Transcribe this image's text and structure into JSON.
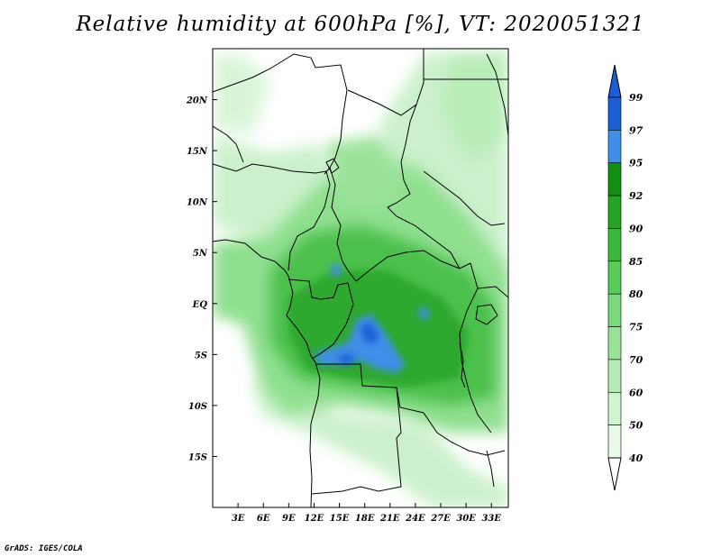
{
  "title": "Relative humidity at 600hPa [%], VT: 2020051321",
  "credit": "GrADS: IGES/COLA",
  "map": {
    "variable": "Relative humidity",
    "level": "600hPa",
    "units": "%",
    "valid_time": "2020051321",
    "lon_range": [
      0,
      35
    ],
    "lat_range": [
      -20,
      25
    ],
    "x_ticks": [
      "3E",
      "6E",
      "9E",
      "12E",
      "15E",
      "18E",
      "21E",
      "24E",
      "27E",
      "30E",
      "33E"
    ],
    "x_tick_values": [
      3,
      6,
      9,
      12,
      15,
      18,
      21,
      24,
      27,
      30,
      33
    ],
    "y_ticks": [
      "20N",
      "15N",
      "10N",
      "5N",
      "EQ",
      "5S",
      "10S",
      "15S"
    ],
    "y_tick_values": [
      20,
      15,
      10,
      5,
      0,
      -5,
      -10,
      -15
    ]
  },
  "colorbar": {
    "levels": [
      "99",
      "97",
      "95",
      "92",
      "90",
      "85",
      "80",
      "75",
      "70",
      "60",
      "50",
      "40"
    ],
    "colors": [
      "#1a5fd6",
      "#3f8fe8",
      "#0f9010",
      "#24a524",
      "#3bb83b",
      "#58cc58",
      "#7ad97a",
      "#98e398",
      "#b5ecb5",
      "#d0f3d0",
      "#e8fae8"
    ],
    "top_color": "#1a5fd6",
    "bottom_color": "#ffffff"
  },
  "colors": {
    "background": "#ffffff",
    "land_dry": "#ffffff",
    "light_green": "#c9f0c9",
    "mid_green": "#7ad97a",
    "dark_green": "#2ea82e",
    "blue": "#3f8fe8"
  }
}
